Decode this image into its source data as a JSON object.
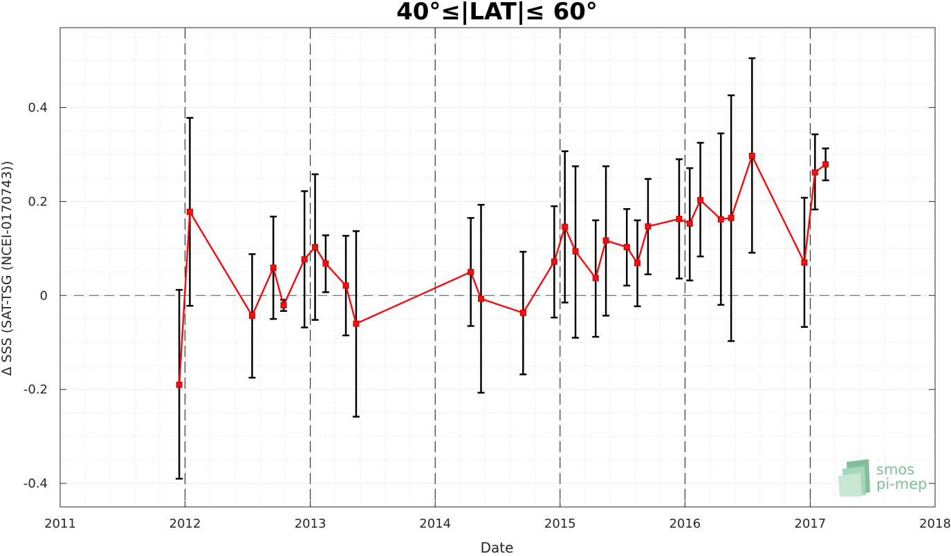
{
  "chart_data": {
    "type": "line",
    "title": "40°≤|LAT|≤ 60°",
    "xlabel": "Date",
    "ylabel": "Δ SSS (SAT-TSG (NCEI-0170743))",
    "xlim": [
      "2011-01-01",
      "2018-01-01"
    ],
    "ylim": [
      -0.45,
      0.57
    ],
    "x_ticks": [
      "2011",
      "2012",
      "2013",
      "2014",
      "2015",
      "2016",
      "2017",
      "2018"
    ],
    "y_ticks": [
      "-0.4",
      "-0.2",
      "0",
      "0.2",
      "0.4"
    ],
    "grid": true,
    "zero_line": true,
    "year_boundary_lines": [
      "2012-01-01",
      "2013-01-01",
      "2014-01-01",
      "2015-01-01",
      "2016-01-01",
      "2017-01-01"
    ],
    "series": [
      {
        "color": "#ee1111",
        "marker": "square",
        "errorbar_color": "#000000",
        "points": [
          {
            "x": "2011-12-15",
            "y": -0.19,
            "lo": -0.39,
            "hi": 0.012
          },
          {
            "x": "2012-01-15",
            "y": 0.178,
            "lo": -0.022,
            "hi": 0.378
          },
          {
            "x": "2012-07-15",
            "y": -0.043,
            "lo": -0.175,
            "hi": 0.088
          },
          {
            "x": "2012-09-15",
            "y": 0.059,
            "lo": -0.05,
            "hi": 0.168
          },
          {
            "x": "2012-10-15",
            "y": -0.021,
            "lo": -0.033,
            "hi": -0.009
          },
          {
            "x": "2012-12-15",
            "y": 0.077,
            "lo": -0.068,
            "hi": 0.222
          },
          {
            "x": "2013-01-15",
            "y": 0.103,
            "lo": -0.052,
            "hi": 0.258
          },
          {
            "x": "2013-02-15",
            "y": 0.068,
            "lo": 0.007,
            "hi": 0.128
          },
          {
            "x": "2013-04-15",
            "y": 0.021,
            "lo": -0.085,
            "hi": 0.127
          },
          {
            "x": "2013-05-15",
            "y": -0.06,
            "lo": -0.258,
            "hi": 0.137
          },
          {
            "x": "2014-04-15",
            "y": 0.05,
            "lo": -0.065,
            "hi": 0.165
          },
          {
            "x": "2014-05-15",
            "y": -0.007,
            "lo": -0.207,
            "hi": 0.193
          },
          {
            "x": "2014-09-15",
            "y": -0.037,
            "lo": -0.168,
            "hi": 0.093
          },
          {
            "x": "2014-12-15",
            "y": 0.072,
            "lo": -0.047,
            "hi": 0.19
          },
          {
            "x": "2015-01-15",
            "y": 0.146,
            "lo": -0.015,
            "hi": 0.307
          },
          {
            "x": "2015-02-15",
            "y": 0.094,
            "lo": -0.09,
            "hi": 0.275
          },
          {
            "x": "2015-04-15",
            "y": 0.037,
            "lo": -0.088,
            "hi": 0.16
          },
          {
            "x": "2015-05-15",
            "y": 0.117,
            "lo": -0.043,
            "hi": 0.275
          },
          {
            "x": "2015-07-15",
            "y": 0.103,
            "lo": 0.021,
            "hi": 0.184
          },
          {
            "x": "2015-08-15",
            "y": 0.069,
            "lo": -0.023,
            "hi": 0.16
          },
          {
            "x": "2015-09-15",
            "y": 0.147,
            "lo": 0.045,
            "hi": 0.248
          },
          {
            "x": "2015-12-15",
            "y": 0.163,
            "lo": 0.036,
            "hi": 0.29
          },
          {
            "x": "2016-01-15",
            "y": 0.153,
            "lo": 0.032,
            "hi": 0.271
          },
          {
            "x": "2016-02-15",
            "y": 0.203,
            "lo": 0.083,
            "hi": 0.325
          },
          {
            "x": "2016-04-15",
            "y": 0.162,
            "lo": -0.02,
            "hi": 0.345
          },
          {
            "x": "2016-05-15",
            "y": 0.165,
            "lo": -0.097,
            "hi": 0.426
          },
          {
            "x": "2016-07-15",
            "y": 0.297,
            "lo": 0.091,
            "hi": 0.505
          },
          {
            "x": "2016-12-15",
            "y": 0.07,
            "lo": -0.067,
            "hi": 0.208
          },
          {
            "x": "2017-01-15",
            "y": 0.262,
            "lo": 0.183,
            "hi": 0.343
          },
          {
            "x": "2017-02-15",
            "y": 0.279,
            "lo": 0.245,
            "hi": 0.313
          }
        ]
      }
    ]
  },
  "logo": {
    "line1": "smos",
    "line2": "pi-mep"
  }
}
